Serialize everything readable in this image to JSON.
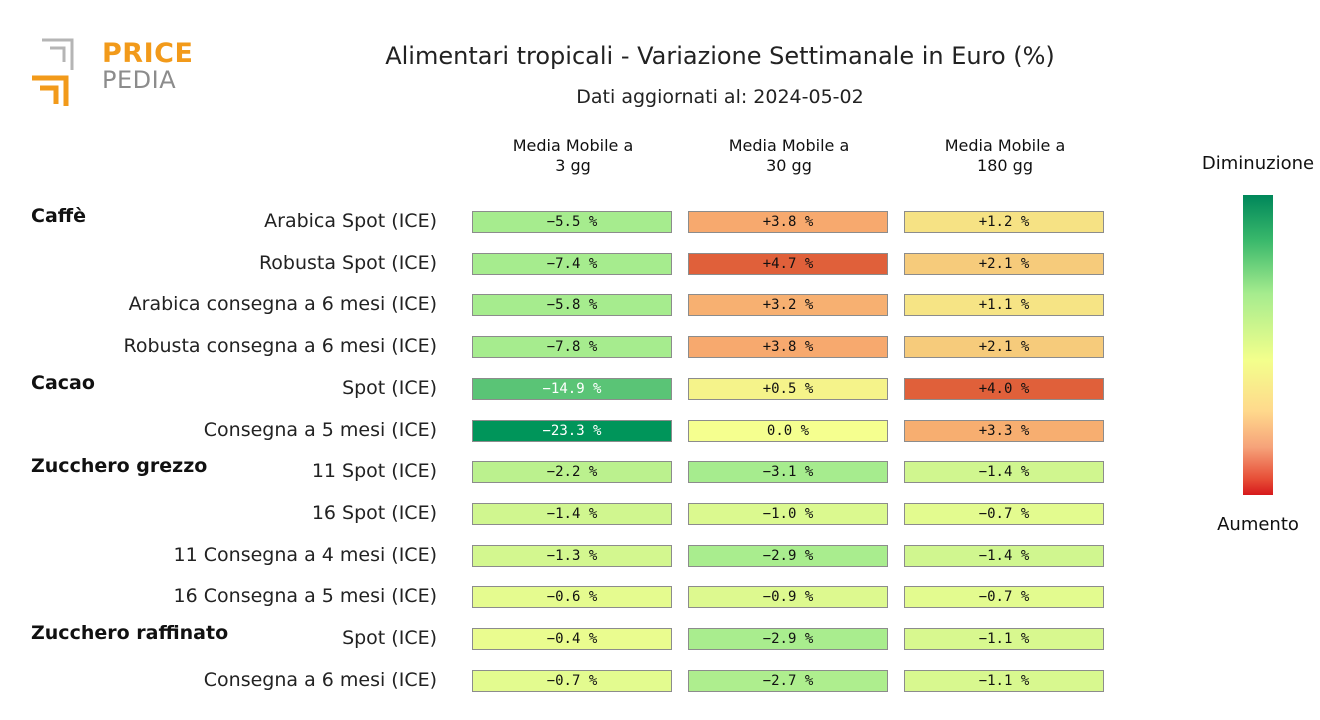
{
  "logo": {
    "line1": "PRICE",
    "line2": "PEDIA"
  },
  "title": "Alimentari tropicali - Variazione Settimanale in Euro (%)",
  "subtitle": "Dati aggiornati al: 2024-05-02",
  "colorbar": {
    "top_label": "Diminuzione",
    "bottom_label": "Aumento"
  },
  "chart_data": {
    "type": "heatmap",
    "title": "Alimentari tropicali - Variazione Settimanale in Euro (%)",
    "columns": [
      "Media Mobile a\n3 gg",
      "Media Mobile a\n30 gg",
      "Media Mobile a\n180 gg"
    ],
    "groups": [
      {
        "name": "Caffè",
        "rows": [
          {
            "label": "Arabica Spot (ICE)",
            "values": [
              -5.5,
              3.8,
              1.2
            ],
            "texts": [
              "−5.5 %",
              "+3.8 %",
              "+1.2 %"
            ]
          },
          {
            "label": "Robusta Spot (ICE)",
            "values": [
              -7.4,
              4.7,
              2.1
            ],
            "texts": [
              "−7.4 %",
              "+4.7 %",
              "+2.1 %"
            ]
          },
          {
            "label": "Arabica consegna a 6 mesi (ICE)",
            "values": [
              -5.8,
              3.2,
              1.1
            ],
            "texts": [
              "−5.8 %",
              "+3.2 %",
              "+1.1 %"
            ]
          },
          {
            "label": "Robusta consegna a 6 mesi (ICE)",
            "values": [
              -7.8,
              3.8,
              2.1
            ],
            "texts": [
              "−7.8 %",
              "+3.8 %",
              "+2.1 %"
            ]
          }
        ]
      },
      {
        "name": "Cacao",
        "rows": [
          {
            "label": "Spot (ICE)",
            "values": [
              -14.9,
              0.5,
              4.0
            ],
            "texts": [
              "−14.9 %",
              "+0.5 %",
              "+4.0 %"
            ]
          },
          {
            "label": "Consegna a 5 mesi (ICE)",
            "values": [
              -23.3,
              0.0,
              3.3
            ],
            "texts": [
              "−23.3 %",
              "0.0 %",
              "+3.3 %"
            ]
          }
        ]
      },
      {
        "name": "Zucchero grezzo",
        "rows": [
          {
            "label": "11 Spot (ICE)",
            "values": [
              -2.2,
              -3.1,
              -1.4
            ],
            "texts": [
              "−2.2 %",
              "−3.1 %",
              "−1.4 %"
            ]
          },
          {
            "label": "16 Spot (ICE)",
            "values": [
              -1.4,
              -1.0,
              -0.7
            ],
            "texts": [
              "−1.4 %",
              "−1.0 %",
              "−0.7 %"
            ]
          },
          {
            "label": "11 Consegna a 4 mesi (ICE)",
            "values": [
              -1.3,
              -2.9,
              -1.4
            ],
            "texts": [
              "−1.3 %",
              "−2.9 %",
              "−1.4 %"
            ]
          },
          {
            "label": "16 Consegna a 5 mesi (ICE)",
            "values": [
              -0.6,
              -0.9,
              -0.7
            ],
            "texts": [
              "−0.6 %",
              "−0.9 %",
              "−0.7 %"
            ]
          }
        ]
      },
      {
        "name": "Zucchero raffinato",
        "rows": [
          {
            "label": "Spot (ICE)",
            "values": [
              -0.4,
              -2.9,
              -1.1
            ],
            "texts": [
              "−0.4 %",
              "−2.9 %",
              "−1.1 %"
            ]
          },
          {
            "label": "Consegna a 6 mesi (ICE)",
            "values": [
              -0.7,
              -2.7,
              -1.1
            ],
            "texts": [
              "−0.7 %",
              "−2.7 %",
              "−1.1 %"
            ]
          }
        ]
      }
    ],
    "colors": {
      "strong_decrease": "#00955a",
      "decrease": "#a6ec8e",
      "neutral": "#f5ff8f",
      "increase": "#f7a96e",
      "strong_increase": "#e0603a"
    }
  }
}
